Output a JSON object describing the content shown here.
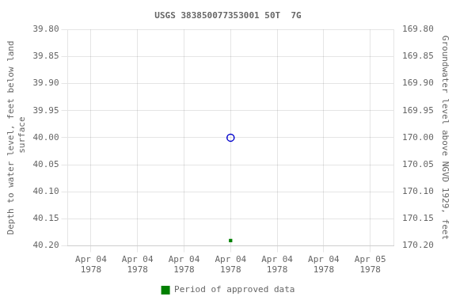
{
  "chart_data": {
    "type": "line",
    "title": "USGS 383850077353001 50T  7G",
    "y_label": "Depth to water level, feet below land\n surface",
    "y2_label": "Groundwater level above NGVD 1929, feet",
    "categories": [
      "Apr 04\n1978",
      "Apr 04\n1978",
      "Apr 04\n1978",
      "Apr 04\n1978",
      "Apr 04\n1978",
      "Apr 04\n1978",
      "Apr 05\n1978"
    ],
    "series": [
      {
        "color": "#0000cc",
        "marker": "circle",
        "line_style": "none",
        "values": [
          null,
          null,
          null,
          40.0,
          null,
          null,
          null
        ]
      },
      {
        "name": "Period of approved data",
        "color": "#008000",
        "marker": "square",
        "line_style": "none",
        "values": [
          null,
          null,
          null,
          40.19,
          null,
          null,
          null
        ]
      }
    ],
    "ylim": [
      40.2,
      39.8
    ],
    "yticks": [
      {
        "value": 39.8,
        "label": "39.80"
      },
      {
        "value": 39.85,
        "label": "39.85"
      },
      {
        "value": 39.9,
        "label": "39.90"
      },
      {
        "value": 39.95,
        "label": "39.95"
      },
      {
        "value": 40.0,
        "label": "40.00"
      },
      {
        "value": 40.05,
        "label": "40.05"
      },
      {
        "value": 40.1,
        "label": "40.10"
      },
      {
        "value": 40.15,
        "label": "40.15"
      },
      {
        "value": 40.2,
        "label": "40.20"
      }
    ],
    "y2lim": [
      170.2,
      169.8
    ],
    "y2ticks": [
      {
        "value": 170.2,
        "label": "170.20"
      },
      {
        "value": 170.15,
        "label": "170.15"
      },
      {
        "value": 170.1,
        "label": "170.10"
      },
      {
        "value": 170.05,
        "label": "170.05"
      },
      {
        "value": 170.0,
        "label": "170.00"
      },
      {
        "value": 169.95,
        "label": "169.95"
      },
      {
        "value": 169.9,
        "label": "169.90"
      },
      {
        "value": 169.85,
        "label": "169.85"
      },
      {
        "value": 169.8,
        "label": "169.80"
      }
    ],
    "grid": true,
    "legend": "bottom"
  }
}
